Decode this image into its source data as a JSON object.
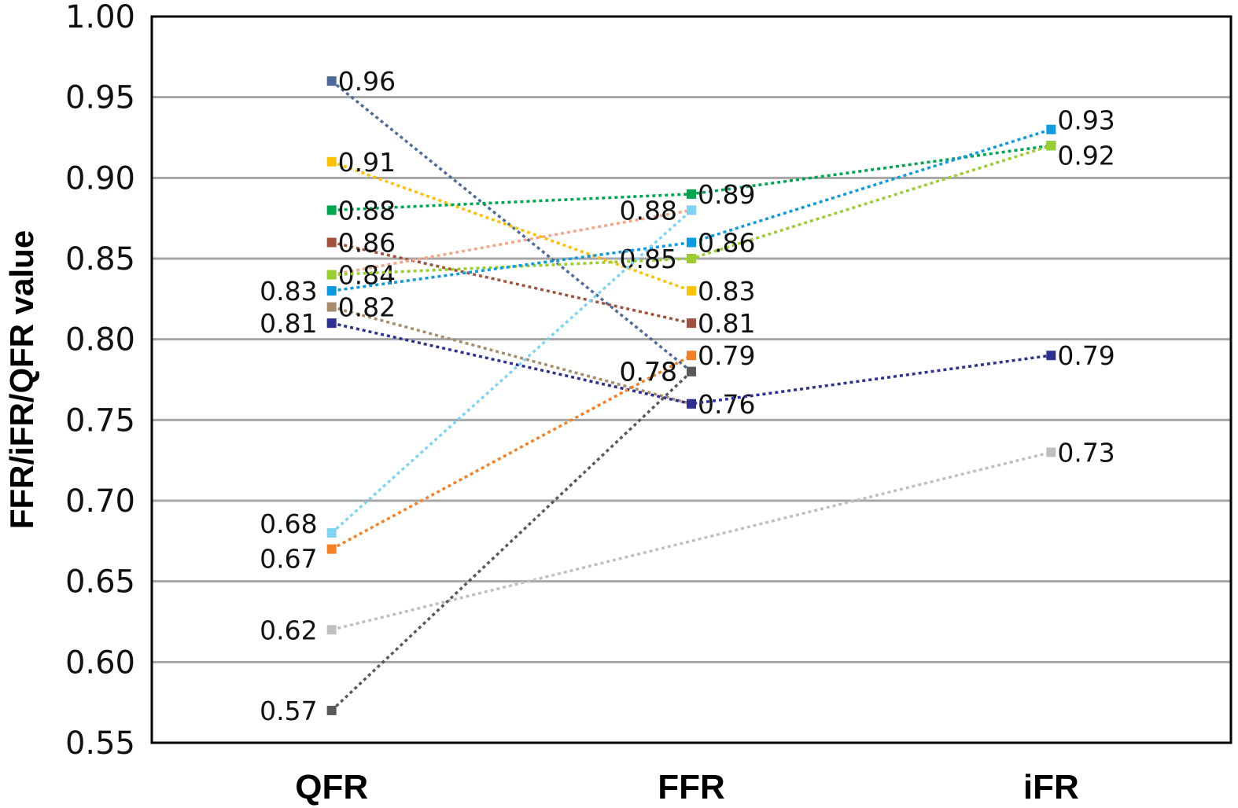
{
  "chart_data": {
    "type": "line",
    "title": "",
    "xlabel": "",
    "ylabel": "FFR/iFR/QFR value",
    "categories": [
      "QFR",
      "FFR",
      "iFR"
    ],
    "ylim": [
      0.55,
      1.0
    ],
    "yticks": [
      "0.55",
      "0.60",
      "0.65",
      "0.70",
      "0.75",
      "0.80",
      "0.85",
      "0.90",
      "0.95",
      "1.00"
    ],
    "grid": true,
    "line_style": "dotted",
    "marker": "square",
    "series": [
      {
        "color": "#4e6a9b",
        "values": [
          0.96,
          0.78,
          null
        ]
      },
      {
        "color": "#ffc000",
        "values": [
          0.91,
          0.83,
          null
        ]
      },
      {
        "color": "#00a550",
        "values": [
          0.88,
          0.89,
          0.92
        ]
      },
      {
        "color": "#a0523d",
        "values": [
          0.86,
          0.81,
          null
        ]
      },
      {
        "color": "#f4a58a",
        "values": [
          0.84,
          0.88,
          null
        ]
      },
      {
        "color": "#9acd32",
        "values": [
          0.84,
          0.85,
          0.92
        ]
      },
      {
        "color": "#0d9ae0",
        "values": [
          0.83,
          0.86,
          0.93
        ]
      },
      {
        "color": "#a88c6a",
        "values": [
          0.82,
          0.76,
          null
        ]
      },
      {
        "color": "#2e3192",
        "values": [
          0.81,
          0.76,
          0.79
        ]
      },
      {
        "color": "#7fd4f4",
        "values": [
          0.68,
          0.88,
          null
        ]
      },
      {
        "color": "#f58025",
        "values": [
          0.67,
          0.79,
          null
        ]
      },
      {
        "color": "#bfbfbf",
        "values": [
          0.62,
          null,
          0.73
        ]
      },
      {
        "color": "#595959",
        "values": [
          0.57,
          0.78,
          null
        ]
      }
    ]
  }
}
